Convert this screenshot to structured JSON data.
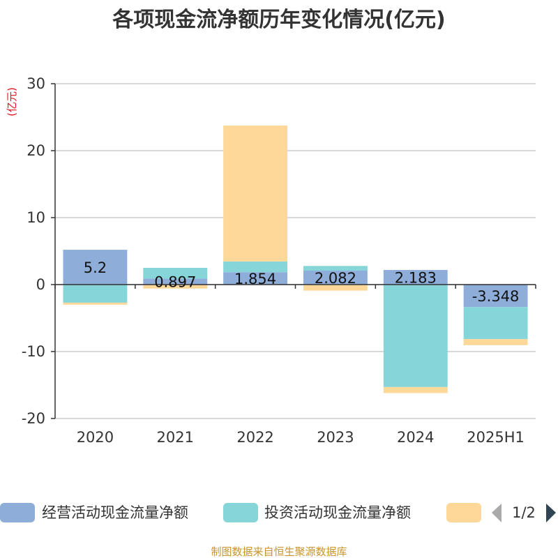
{
  "chart_data": {
    "type": "bar",
    "stacked": true,
    "title": "各项现金流净额历年变化情况(亿元)",
    "unit_label": "(亿元)",
    "categories": [
      "2020",
      "2021",
      "2022",
      "2023",
      "2024",
      "2025H1"
    ],
    "ylim": [
      -20,
      30
    ],
    "yticks": [
      30,
      20,
      10,
      0,
      -10,
      -20
    ],
    "grid": true,
    "series": [
      {
        "name": "经营活动现金流量净额",
        "color": "#8eadd9",
        "values": [
          5.2,
          0.897,
          1.854,
          2.082,
          2.183,
          -3.348
        ],
        "labels": [
          "5.2",
          "0.897",
          "1.854",
          "2.082",
          "2.183",
          "-3.348"
        ]
      },
      {
        "name": "投资活动现金流量净额",
        "color": "#86d5d8",
        "values": [
          -2.7,
          1.6,
          1.6,
          0.7,
          -15.3,
          -4.8
        ],
        "labels": []
      },
      {
        "name": "",
        "color": "#fdd898",
        "values": [
          -0.3,
          -0.6,
          20.3,
          -0.9,
          -0.9,
          -0.9
        ],
        "labels": []
      }
    ],
    "legend": {
      "position": "bottom",
      "page": "1/2"
    },
    "source": "制图数据来自恒生聚源数据库"
  }
}
